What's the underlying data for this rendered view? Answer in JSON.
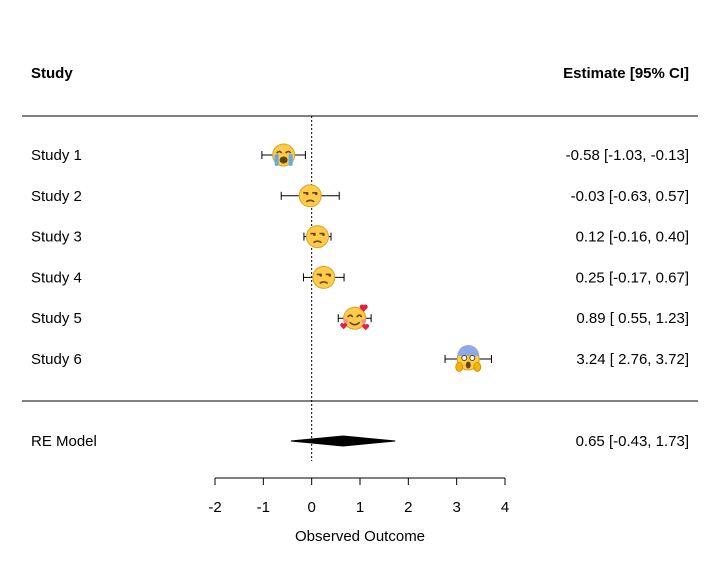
{
  "chart_data": {
    "type": "forest",
    "header": {
      "label_col": "Study",
      "estimate_col": "Estimate [95% CI]"
    },
    "studies": [
      {
        "label": "Study 1",
        "estimate": -0.58,
        "ci_low": -1.03,
        "ci_high": -0.13,
        "text": "-0.58 [-1.03, -0.13]",
        "marker": "loudly-crying-face"
      },
      {
        "label": "Study 2",
        "estimate": -0.03,
        "ci_low": -0.63,
        "ci_high": 0.57,
        "text": "-0.03 [-0.63,  0.57]",
        "marker": "unamused-face"
      },
      {
        "label": "Study 3",
        "estimate": 0.12,
        "ci_low": -0.16,
        "ci_high": 0.4,
        "text": "0.12 [-0.16,  0.40]",
        "marker": "unamused-face"
      },
      {
        "label": "Study 4",
        "estimate": 0.25,
        "ci_low": -0.17,
        "ci_high": 0.67,
        "text": "0.25 [-0.17,  0.67]",
        "marker": "unamused-face"
      },
      {
        "label": "Study 5",
        "estimate": 0.89,
        "ci_low": 0.55,
        "ci_high": 1.23,
        "text": "0.89 [ 0.55,  1.23]",
        "marker": "smiling-face-with-hearts"
      },
      {
        "label": "Study 6",
        "estimate": 3.24,
        "ci_low": 2.76,
        "ci_high": 3.72,
        "text": "3.24 [ 2.76,  3.72]",
        "marker": "face-screaming-in-fear"
      }
    ],
    "summary": {
      "label": "RE Model",
      "estimate": 0.65,
      "ci_low": -0.43,
      "ci_high": 1.73,
      "text": "0.65 [-0.43,  1.73]"
    },
    "xlabel": "Observed Outcome",
    "xlim": [
      -2,
      4
    ],
    "xticks": [
      -2,
      -1,
      0,
      1,
      2,
      3,
      4
    ],
    "reference_line": 0
  }
}
